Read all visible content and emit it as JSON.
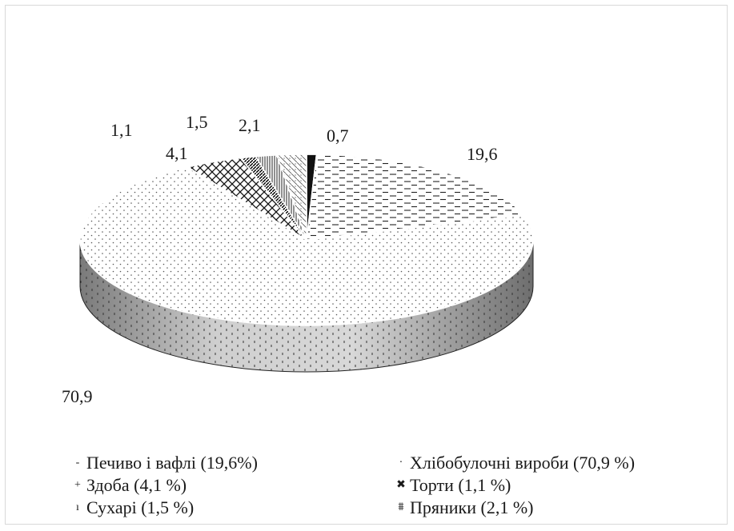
{
  "chart_data": {
    "type": "pie",
    "title": "",
    "three_d": true,
    "slices": [
      {
        "label": "0,7",
        "value": 0.7,
        "pattern": "solid-dark"
      },
      {
        "label": "19,6",
        "value": 19.6,
        "pattern": "dashes"
      },
      {
        "label": "70,9",
        "value": 70.9,
        "pattern": "dots"
      },
      {
        "label": "4,1",
        "value": 4.1,
        "pattern": "crosshatch"
      },
      {
        "label": "1,1",
        "value": 1.1,
        "pattern": "diag-dense"
      },
      {
        "label": "1,5",
        "value": 1.5,
        "pattern": "vertical-lines"
      },
      {
        "label": "2,1",
        "value": 2.1,
        "pattern": "diag-light"
      }
    ],
    "legend_position": "bottom",
    "legend": [
      {
        "marker": "-",
        "text": "Печиво і вафлі (19,6%)"
      },
      {
        "marker": "·",
        "text": "Хлібобулочні вироби (70,9 %)"
      },
      {
        "marker": "+",
        "text": "Здоба (4,1 %)"
      },
      {
        "marker": "✖",
        "text": "Торти (1,1 %)"
      },
      {
        "marker": "ı",
        "text": "Сухарі (1,5 %)"
      },
      {
        "marker": "⩩",
        "text": "Пряники (2,1 %)"
      }
    ]
  }
}
